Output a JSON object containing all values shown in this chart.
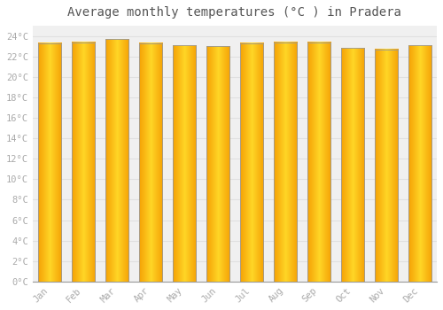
{
  "title": "Average monthly temperatures (°C ) in Pradera",
  "months": [
    "Jan",
    "Feb",
    "Mar",
    "Apr",
    "May",
    "Jun",
    "Jul",
    "Aug",
    "Sep",
    "Oct",
    "Nov",
    "Dec"
  ],
  "values": [
    23.3,
    23.4,
    23.7,
    23.3,
    23.1,
    23.0,
    23.3,
    23.4,
    23.4,
    22.8,
    22.7,
    23.1
  ],
  "bar_color_center": "#FFD740",
  "bar_color_edge": "#F5A000",
  "bar_border_color": "#999999",
  "background_color": "#ffffff",
  "plot_bg_color": "#f0f0f0",
  "grid_color": "#e0e0e0",
  "ylim": [
    0,
    25
  ],
  "ytick_max": 24,
  "ytick_step": 2,
  "title_fontsize": 10,
  "tick_fontsize": 7.5,
  "tick_color": "#aaaaaa",
  "title_color": "#555555"
}
